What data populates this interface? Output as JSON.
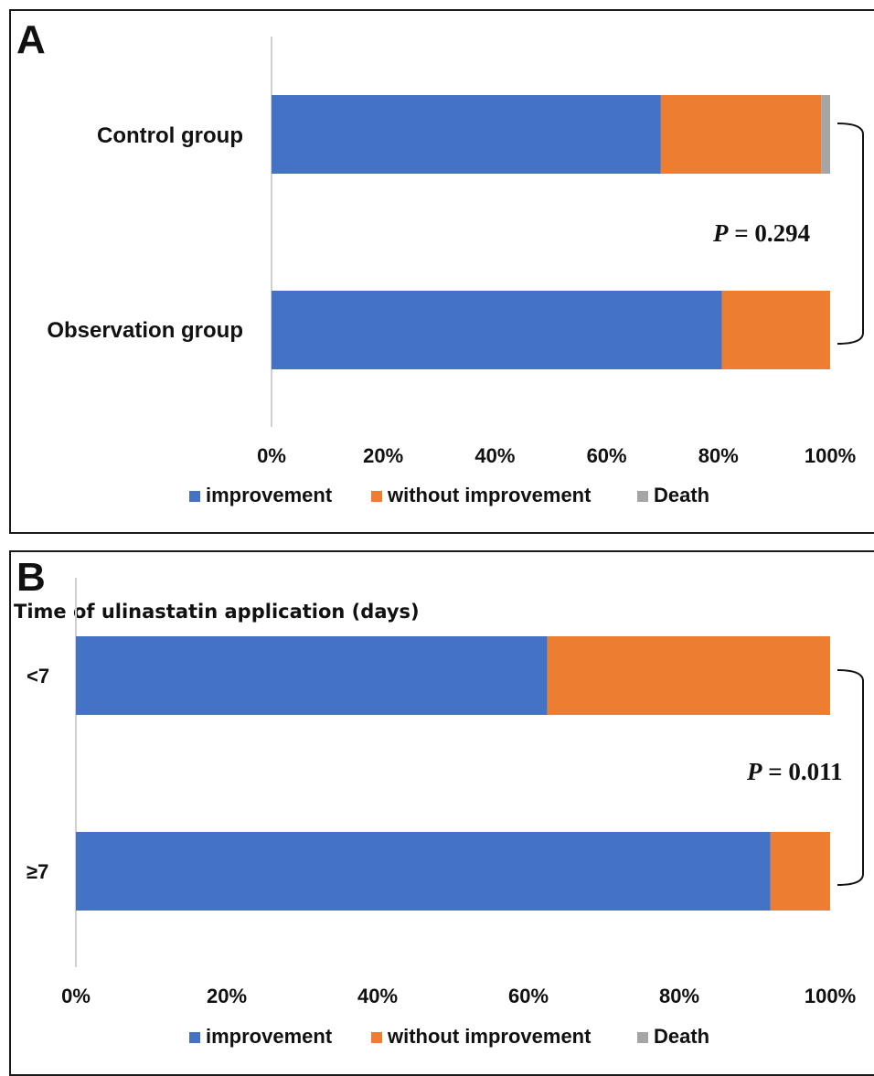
{
  "legend": {
    "items": [
      "improvement",
      "without improvement",
      "Death"
    ],
    "colors": [
      "#4472C4",
      "#ED7D31",
      "#A5A5A5"
    ]
  },
  "chart_data": [
    {
      "type": "bar",
      "orientation": "horizontal",
      "stacked": "percent",
      "panel_label": "A",
      "title": "",
      "categories": [
        "Control group",
        "Observation group"
      ],
      "series": [
        {
          "name": "improvement",
          "values": [
            69.7,
            80.6
          ]
        },
        {
          "name": "without improvement",
          "values": [
            28.7,
            19.4
          ]
        },
        {
          "name": "Death",
          "values": [
            1.6,
            0
          ]
        }
      ],
      "xlim": [
        0,
        100
      ],
      "xticks": [
        "0%",
        "20%",
        "40%",
        "60%",
        "80%",
        "100%"
      ],
      "annotation": {
        "italic": "P",
        "rest": " = 0.294"
      },
      "legend_position": "bottom",
      "grid": false
    },
    {
      "type": "bar",
      "orientation": "horizontal",
      "stacked": "percent",
      "panel_label": "B",
      "title": "Time of ulinastatin application (days)",
      "categories": [
        "<7",
        "≥7"
      ],
      "series": [
        {
          "name": "improvement",
          "values": [
            62.5,
            92.1
          ]
        },
        {
          "name": "without improvement",
          "values": [
            37.5,
            7.9
          ]
        },
        {
          "name": "Death",
          "values": [
            0,
            0
          ]
        }
      ],
      "xlim": [
        0,
        100
      ],
      "xticks": [
        "0%",
        "20%",
        "40%",
        "60%",
        "80%",
        "100%"
      ],
      "annotation": {
        "italic": "P",
        "rest": " = 0.011"
      },
      "legend_position": "bottom",
      "grid": false
    }
  ]
}
